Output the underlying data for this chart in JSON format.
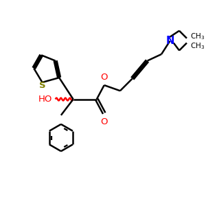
{
  "bg_color": "#ffffff",
  "bond_color": "#000000",
  "O_color": "#ff0000",
  "N_color": "#0000ff",
  "S_color": "#808000",
  "figsize": [
    3.0,
    3.0
  ],
  "dpi": 100,
  "xlim": [
    0,
    10
  ],
  "ylim": [
    0,
    10
  ]
}
